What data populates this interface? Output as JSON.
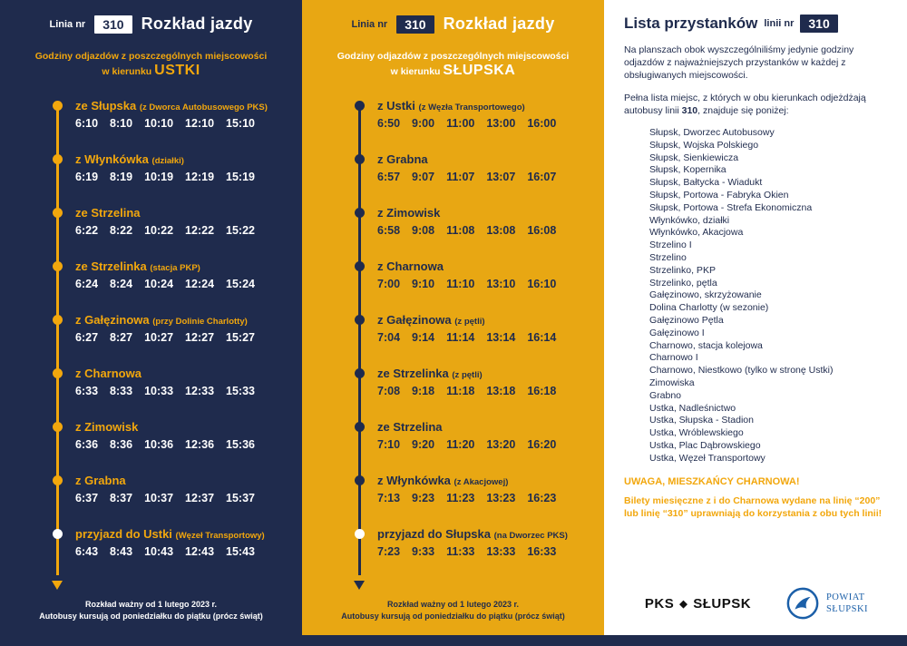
{
  "left": {
    "line_label": "Linia nr",
    "line_number": "310",
    "title": "Rozkład jazdy",
    "subtitle": "Godziny odjazdów z poszczególnych miejscowości",
    "direction_label": "w kierunku",
    "direction": "USTKI",
    "stops": [
      {
        "name": "ze Słupska",
        "note": "(z Dworca Autobusowego PKS)",
        "times": [
          "6:10",
          "8:10",
          "10:10",
          "12:10",
          "15:10"
        ]
      },
      {
        "name": "z Włynkówka",
        "note": "(działki)",
        "times": [
          "6:19",
          "8:19",
          "10:19",
          "12:19",
          "15:19"
        ]
      },
      {
        "name": "ze Strzelina",
        "note": "",
        "times": [
          "6:22",
          "8:22",
          "10:22",
          "12:22",
          "15:22"
        ]
      },
      {
        "name": "ze Strzelinka",
        "note": "(stacja PKP)",
        "times": [
          "6:24",
          "8:24",
          "10:24",
          "12:24",
          "15:24"
        ]
      },
      {
        "name": "z Gałęzinowa",
        "note": "(przy Dolinie Charlotty)",
        "times": [
          "6:27",
          "8:27",
          "10:27",
          "12:27",
          "15:27"
        ]
      },
      {
        "name": "z Charnowa",
        "note": "",
        "times": [
          "6:33",
          "8:33",
          "10:33",
          "12:33",
          "15:33"
        ]
      },
      {
        "name": "z Zimowisk",
        "note": "",
        "times": [
          "6:36",
          "8:36",
          "10:36",
          "12:36",
          "15:36"
        ]
      },
      {
        "name": "z Grabna",
        "note": "",
        "times": [
          "6:37",
          "8:37",
          "10:37",
          "12:37",
          "15:37"
        ]
      },
      {
        "name": "przyjazd do Ustki",
        "note": "(Węzeł Transportowy)",
        "times": [
          "6:43",
          "8:43",
          "10:43",
          "12:43",
          "15:43"
        ]
      }
    ],
    "footer1": "Rozkład ważny od 1 lutego 2023 r.",
    "footer2": "Autobusy kursują od poniedziałku do piątku (prócz świąt)"
  },
  "middle": {
    "line_label": "Linia nr",
    "line_number": "310",
    "title": "Rozkład jazdy",
    "subtitle": "Godziny odjazdów z poszczególnych miejscowości",
    "direction_label": "w kierunku",
    "direction": "SŁUPSKA",
    "stops": [
      {
        "name": "z Ustki",
        "note": "(z Węzła Transportowego)",
        "times": [
          "6:50",
          "9:00",
          "11:00",
          "13:00",
          "16:00"
        ]
      },
      {
        "name": "z Grabna",
        "note": "",
        "times": [
          "6:57",
          "9:07",
          "11:07",
          "13:07",
          "16:07"
        ]
      },
      {
        "name": "z Zimowisk",
        "note": "",
        "times": [
          "6:58",
          "9:08",
          "11:08",
          "13:08",
          "16:08"
        ]
      },
      {
        "name": "z Charnowa",
        "note": "",
        "times": [
          "7:00",
          "9:10",
          "11:10",
          "13:10",
          "16:10"
        ]
      },
      {
        "name": "z Gałęzinowa",
        "note": "(z pętli)",
        "times": [
          "7:04",
          "9:14",
          "11:14",
          "13:14",
          "16:14"
        ]
      },
      {
        "name": "ze Strzelinka",
        "note": "(z pętli)",
        "times": [
          "7:08",
          "9:18",
          "11:18",
          "13:18",
          "16:18"
        ]
      },
      {
        "name": "ze Strzelina",
        "note": "",
        "times": [
          "7:10",
          "9:20",
          "11:20",
          "13:20",
          "16:20"
        ]
      },
      {
        "name": "z Włynkówka",
        "note": "(z Akacjowej)",
        "times": [
          "7:13",
          "9:23",
          "11:23",
          "13:23",
          "16:23"
        ]
      },
      {
        "name": "przyjazd do Słupska",
        "note": "(na Dworzec PKS)",
        "times": [
          "7:23",
          "9:33",
          "11:33",
          "13:33",
          "16:33"
        ]
      }
    ],
    "footer1": "Rozkład ważny od 1 lutego 2023 r.",
    "footer2": "Autobusy kursują od poniedziałku do piątku (prócz świąt)"
  },
  "right": {
    "title": "Lista przystanków",
    "subtitle": "linii nr",
    "line_number": "310",
    "para1": "Na planszach obok wyszczególniliśmy jedynie godziny odjazdów z najważniejszych przystanków w każdej z obsługiwanych miejscowości.",
    "para2_pre": "Pełna lista miejsc, z których w obu kierunkach odjeżdżają autobusy linii ",
    "para2_bold": "310",
    "para2_post": ", znajduje się poniżej:",
    "stops_list": [
      "Słupsk, Dworzec Autobusowy",
      "Słupsk, Wojska Polskiego",
      "Słupsk, Sienkiewicza",
      "Słupsk, Kopernika",
      "Słupsk, Bałtycka - Wiadukt",
      "Słupsk, Portowa - Fabryka Okien",
      "Słupsk, Portowa - Strefa Ekonomiczna",
      "Włynkówko, działki",
      "Włynkówko, Akacjowa",
      "Strzelino I",
      "Strzelino",
      "Strzelinko, PKP",
      "Strzelinko, pętla",
      "Gałęzinowo, skrzyżowanie",
      "Dolina Charlotty (w sezonie)",
      "Gałęzinowo Pętla",
      "Gałęzinowo I",
      "Charnowo, stacja kolejowa",
      "Charnowo I",
      "Charnowo, Niestkowo (tylko w stronę Ustki)",
      "Zimowiska",
      "Grabno",
      "Ustka, Nadleśnictwo",
      "Ustka, Słupska - Stadion",
      "Ustka, Wróblewskiego",
      "Ustka, Plac Dąbrowskiego",
      "Ustka, Węzeł Transportowy"
    ],
    "warning_title": "UWAGA, MIESZKAŃCY CHARNOWA!",
    "warning_text": "Bilety miesięczne z i do Charnowa wydane na linię “200” lub linię “310” uprawniają do korzystania z obu tych linii!",
    "logo_pks": "PKS",
    "logo_slupsk": "SŁUPSK",
    "logo_powiat1": "POWIAT",
    "logo_powiat2": "SŁUPSKI"
  }
}
